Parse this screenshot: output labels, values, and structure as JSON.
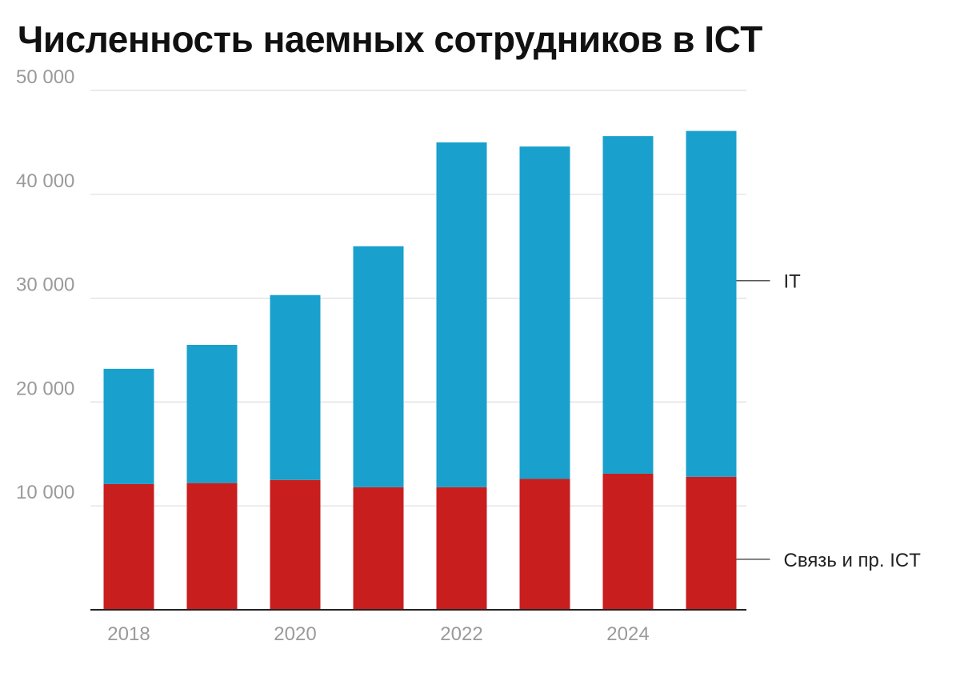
{
  "chart_data": {
    "type": "bar",
    "stacked": true,
    "title": "Численность наемных сотрудников в ICT",
    "x": [
      2018,
      2019,
      2020,
      2021,
      2022,
      2023,
      2024,
      2025
    ],
    "x_tick_labels": [
      "2018",
      "2020",
      "2022",
      "2024"
    ],
    "x_tick_values": [
      2018,
      2020,
      2022,
      2024
    ],
    "y_tick_labels": [
      "10 000",
      "20 000",
      "30 000",
      "40 000",
      "50 000"
    ],
    "y_tick_values": [
      10000,
      20000,
      30000,
      40000,
      50000
    ],
    "ylim": [
      0,
      50000
    ],
    "grid": true,
    "legend_position": "right",
    "series": [
      {
        "name": "Связь и пр. ICT",
        "color": "#c81e1e",
        "values": [
          12100,
          12200,
          12500,
          11800,
          11800,
          12600,
          13100,
          12800
        ]
      },
      {
        "name": "IT",
        "color": "#1aa0cc",
        "values": [
          11100,
          13300,
          17800,
          23200,
          33200,
          32000,
          32500,
          33300
        ]
      }
    ]
  }
}
